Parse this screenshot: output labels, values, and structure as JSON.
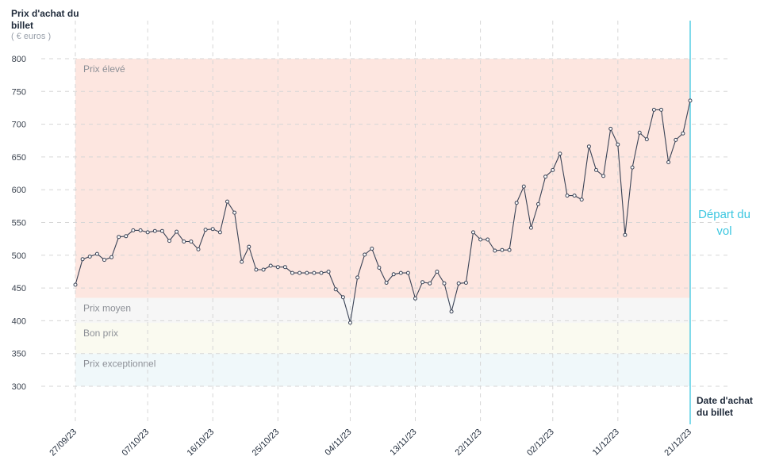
{
  "axis": {
    "y_title": "Prix d'achat du billet",
    "y_unit": "( € euros )",
    "x_title": "Date d'achat du billet"
  },
  "departure_label": "Départ du vol",
  "chart_data": {
    "type": "line",
    "ylabel": "Prix d'achat du billet",
    "xlabel": "Date d'achat du billet",
    "ylim": [
      300,
      800
    ],
    "yticks": [
      300,
      350,
      400,
      450,
      500,
      550,
      600,
      650,
      700,
      750,
      800
    ],
    "xlim": [
      "2023-09-27",
      "2023-12-21"
    ],
    "xticks": [
      "27/09/23",
      "07/10/23",
      "16/10/23",
      "25/10/23",
      "04/11/23",
      "13/11/23",
      "22/11/23",
      "02/12/23",
      "11/12/23",
      "21/12/23"
    ],
    "grid": true,
    "zones": [
      {
        "label": "Prix élevé",
        "from": 435,
        "to": 800,
        "color": "#fde6e0"
      },
      {
        "label": "Prix moyen",
        "from": 397,
        "to": 435,
        "color": "#f6f6f6"
      },
      {
        "label": "Bon prix",
        "from": 350,
        "to": 397,
        "color": "#fafaf0"
      },
      {
        "label": "Prix exceptionnel",
        "from": 300,
        "to": 350,
        "color": "#f0f8fa"
      }
    ],
    "departure_date": "2023-12-21",
    "series": [
      {
        "color": "#3a4356",
        "points": [
          [
            "2023-09-27",
            455
          ],
          [
            "2023-09-28",
            494
          ],
          [
            "2023-09-29",
            498
          ],
          [
            "2023-09-30",
            502
          ],
          [
            "2023-10-01",
            493
          ],
          [
            "2023-10-02",
            497
          ],
          [
            "2023-10-03",
            528
          ],
          [
            "2023-10-04",
            529
          ],
          [
            "2023-10-05",
            538
          ],
          [
            "2023-10-06",
            538
          ],
          [
            "2023-10-07",
            535
          ],
          [
            "2023-10-08",
            537
          ],
          [
            "2023-10-09",
            537
          ],
          [
            "2023-10-10",
            522
          ],
          [
            "2023-10-11",
            536
          ],
          [
            "2023-10-12",
            521
          ],
          [
            "2023-10-13",
            521
          ],
          [
            "2023-10-14",
            509
          ],
          [
            "2023-10-15",
            539
          ],
          [
            "2023-10-16",
            540
          ],
          [
            "2023-10-17",
            535
          ],
          [
            "2023-10-18",
            582
          ],
          [
            "2023-10-19",
            565
          ],
          [
            "2023-10-20",
            490
          ],
          [
            "2023-10-21",
            513
          ],
          [
            "2023-10-22",
            478
          ],
          [
            "2023-10-23",
            478
          ],
          [
            "2023-10-24",
            484
          ],
          [
            "2023-10-25",
            482
          ],
          [
            "2023-10-26",
            482
          ],
          [
            "2023-10-27",
            473
          ],
          [
            "2023-10-28",
            473
          ],
          [
            "2023-10-29",
            473
          ],
          [
            "2023-10-30",
            473
          ],
          [
            "2023-10-31",
            473
          ],
          [
            "2023-11-01",
            475
          ],
          [
            "2023-11-02",
            448
          ],
          [
            "2023-11-03",
            436
          ],
          [
            "2023-11-04",
            397
          ],
          [
            "2023-11-05",
            466
          ],
          [
            "2023-11-06",
            501
          ],
          [
            "2023-11-07",
            510
          ],
          [
            "2023-11-08",
            481
          ],
          [
            "2023-11-09",
            458
          ],
          [
            "2023-11-10",
            471
          ],
          [
            "2023-11-11",
            473
          ],
          [
            "2023-11-12",
            473
          ],
          [
            "2023-11-13",
            434
          ],
          [
            "2023-11-14",
            459
          ],
          [
            "2023-11-15",
            457
          ],
          [
            "2023-11-16",
            475
          ],
          [
            "2023-11-17",
            457
          ],
          [
            "2023-11-18",
            414
          ],
          [
            "2023-11-19",
            457
          ],
          [
            "2023-11-20",
            458
          ],
          [
            "2023-11-21",
            535
          ],
          [
            "2023-11-22",
            524
          ],
          [
            "2023-11-23",
            524
          ],
          [
            "2023-11-24",
            507
          ],
          [
            "2023-11-25",
            508
          ],
          [
            "2023-11-26",
            508
          ],
          [
            "2023-11-27",
            580
          ],
          [
            "2023-11-28",
            605
          ],
          [
            "2023-11-29",
            542
          ],
          [
            "2023-11-30",
            578
          ],
          [
            "2023-12-01",
            620
          ],
          [
            "2023-12-02",
            630
          ],
          [
            "2023-12-03",
            655
          ],
          [
            "2023-12-04",
            591
          ],
          [
            "2023-12-05",
            591
          ],
          [
            "2023-12-06",
            585
          ],
          [
            "2023-12-07",
            666
          ],
          [
            "2023-12-08",
            630
          ],
          [
            "2023-12-09",
            621
          ],
          [
            "2023-12-10",
            693
          ],
          [
            "2023-12-11",
            669
          ],
          [
            "2023-12-12",
            531
          ],
          [
            "2023-12-13",
            634
          ],
          [
            "2023-12-14",
            687
          ],
          [
            "2023-12-15",
            677
          ],
          [
            "2023-12-16",
            722
          ],
          [
            "2023-12-17",
            722
          ],
          [
            "2023-12-18",
            642
          ],
          [
            "2023-12-19",
            676
          ],
          [
            "2023-12-20",
            686
          ],
          [
            "2023-12-21",
            736
          ]
        ]
      }
    ]
  }
}
